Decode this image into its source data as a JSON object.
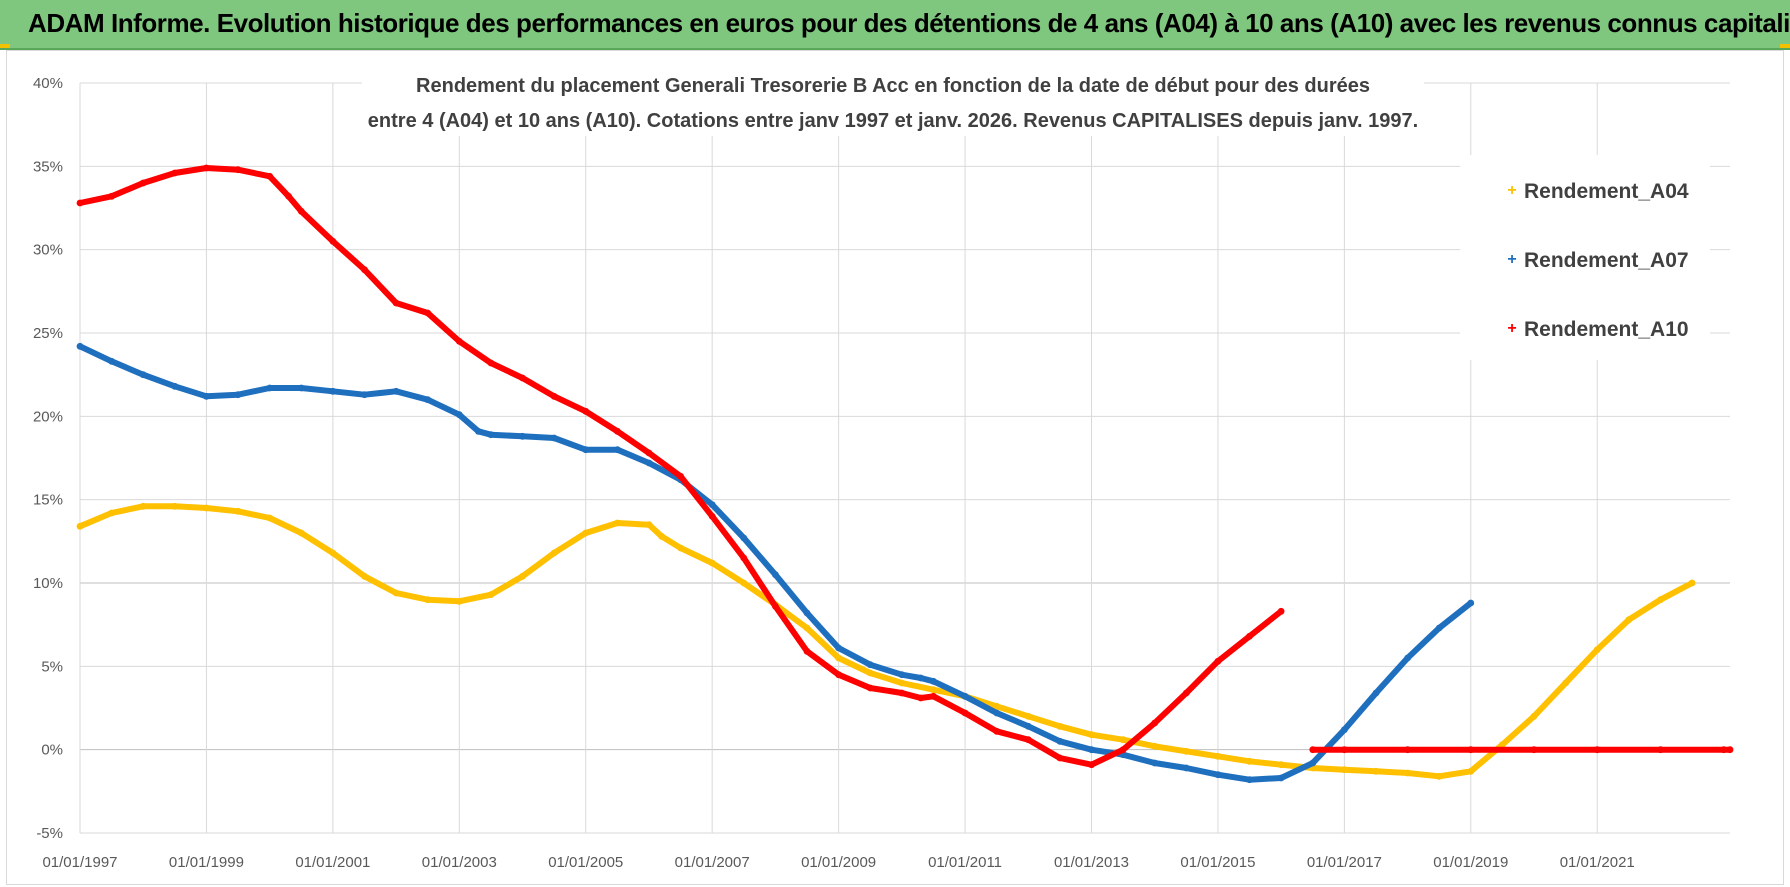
{
  "header": {
    "title": "ADAM Informe. Evolution historique des performances en euros pour des détentions de 4 ans (A04) à 10 ans (A10) avec les revenus connus capitalisés"
  },
  "colors": {
    "A04": "#ffc000",
    "A07": "#1f6fbf",
    "A10": "#ff0000",
    "header_bg": "#7fc77f",
    "grid": "#d9d9d9"
  },
  "chart_data": {
    "type": "scatter",
    "title_lines": [
      "Rendement du placement Generali Tresorerie B Acc en fonction de la date de début pour des durées",
      "entre 4 (A04) et 10 ans (A10). Cotations entre janv 1997 et janv. 2026. Revenus CAPITALISES depuis janv. 1997."
    ],
    "xlabel": "",
    "ylabel": "",
    "xlim": [
      1997.0,
      2023.1
    ],
    "ylim": [
      -5,
      40
    ],
    "yticks": [
      40,
      35,
      30,
      25,
      20,
      15,
      10,
      5,
      0,
      -5
    ],
    "ytick_labels": [
      "40%",
      "35%",
      "30%",
      "25%",
      "20%",
      "15%",
      "10%",
      "5%",
      "0%",
      "-5%"
    ],
    "xticks": [
      1997,
      1999,
      2001,
      2003,
      2005,
      2007,
      2009,
      2011,
      2013,
      2015,
      2017,
      2019,
      2021
    ],
    "xtick_labels": [
      "01/01/1997",
      "01/01/1999",
      "01/01/2001",
      "01/01/2003",
      "01/01/2005",
      "01/01/2007",
      "01/01/2009",
      "01/01/2011",
      "01/01/2013",
      "01/01/2015",
      "01/01/2017",
      "01/01/2019",
      "01/01/2021"
    ],
    "grid": true,
    "legend_position": "top-right",
    "series": [
      {
        "name": "Rendement_A04",
        "key": "A04",
        "x": [
          1997.0,
          1997.5,
          1998.0,
          1998.5,
          1999.0,
          1999.5,
          2000.0,
          2000.5,
          2001.0,
          2001.5,
          2002.0,
          2002.5,
          2003.0,
          2003.5,
          2004.0,
          2004.5,
          2005.0,
          2005.5,
          2006.0,
          2006.2,
          2006.5,
          2007.0,
          2007.5,
          2008.0,
          2008.5,
          2009.0,
          2009.5,
          2010.0,
          2010.5,
          2011.0,
          2011.5,
          2012.0,
          2012.5,
          2013.0,
          2013.5,
          2014.0,
          2014.5,
          2015.0,
          2015.5,
          2016.0,
          2016.5,
          2017.0,
          2017.5,
          2018.0,
          2018.5,
          2019.0,
          2019.5,
          2020.0,
          2020.5,
          2021.0,
          2021.5,
          2022.0,
          2022.5
        ],
        "y": [
          13.4,
          14.2,
          14.6,
          14.6,
          14.5,
          14.3,
          13.9,
          13.0,
          11.8,
          10.4,
          9.4,
          9.0,
          8.9,
          9.3,
          10.4,
          11.8,
          13.0,
          13.6,
          13.5,
          12.8,
          12.1,
          11.2,
          10.0,
          8.7,
          7.3,
          5.5,
          4.6,
          4.0,
          3.6,
          3.2,
          2.6,
          2.0,
          1.4,
          0.9,
          0.6,
          0.2,
          -0.1,
          -0.4,
          -0.7,
          -0.9,
          -1.1,
          -1.2,
          -1.3,
          -1.4,
          -1.6,
          -1.3,
          0.3,
          2.0,
          4.0,
          6.0,
          7.8,
          9.0,
          10.0
        ]
      },
      {
        "name": "Rendement_A07",
        "key": "A07",
        "x": [
          1997.0,
          1997.5,
          1998.0,
          1998.5,
          1999.0,
          1999.5,
          2000.0,
          2000.5,
          2001.0,
          2001.5,
          2002.0,
          2002.5,
          2003.0,
          2003.3,
          2003.5,
          2004.0,
          2004.5,
          2005.0,
          2005.5,
          2006.0,
          2006.5,
          2007.0,
          2007.5,
          2008.0,
          2008.5,
          2009.0,
          2009.5,
          2010.0,
          2010.3,
          2010.5,
          2011.0,
          2011.5,
          2012.0,
          2012.5,
          2013.0,
          2013.5,
          2014.0,
          2014.5,
          2015.0,
          2015.5,
          2016.0,
          2016.5,
          2017.0,
          2017.5,
          2018.0,
          2018.5,
          2019.0
        ],
        "y": [
          24.2,
          23.3,
          22.5,
          21.8,
          21.2,
          21.3,
          21.7,
          21.7,
          21.5,
          21.3,
          21.5,
          21.0,
          20.1,
          19.1,
          18.9,
          18.8,
          18.7,
          18.0,
          18.0,
          17.2,
          16.2,
          14.7,
          12.7,
          10.5,
          8.2,
          6.1,
          5.1,
          4.5,
          4.3,
          4.1,
          3.2,
          2.2,
          1.4,
          0.5,
          0.0,
          -0.3,
          -0.8,
          -1.1,
          -1.5,
          -1.8,
          -1.7,
          -0.8,
          1.2,
          3.4,
          5.5,
          7.3,
          8.8
        ]
      },
      {
        "name": "Rendement_A10",
        "key": "A10",
        "x": [
          1997.0,
          1997.5,
          1998.0,
          1998.5,
          1999.0,
          1999.5,
          2000.0,
          2000.3,
          2000.5,
          2001.0,
          2001.5,
          2002.0,
          2002.5,
          2003.0,
          2003.5,
          2004.0,
          2004.5,
          2005.0,
          2005.5,
          2006.0,
          2006.5,
          2007.0,
          2007.5,
          2008.0,
          2008.5,
          2009.0,
          2009.5,
          2010.0,
          2010.3,
          2010.5,
          2011.0,
          2011.5,
          2012.0,
          2012.5,
          2013.0,
          2013.5,
          2014.0,
          2014.5,
          2015.0,
          2015.5,
          2016.0,
          2016.5,
          2017.0,
          2018.0,
          2019.0,
          2020.0,
          2021.0,
          2022.0,
          2023.0,
          2023.1
        ],
        "y": [
          32.8,
          33.2,
          34.0,
          34.6,
          34.9,
          34.8,
          34.4,
          33.2,
          32.3,
          30.5,
          28.8,
          26.8,
          26.2,
          24.5,
          23.2,
          22.3,
          21.2,
          20.3,
          19.1,
          17.8,
          16.4,
          14.0,
          11.5,
          8.6,
          5.9,
          4.5,
          3.7,
          3.4,
          3.1,
          3.2,
          2.2,
          1.1,
          0.6,
          -0.5,
          -0.9,
          0.0,
          1.6,
          3.4,
          5.3,
          6.8,
          8.3,
          0.0,
          0.0,
          0.0,
          0.0,
          0.0,
          0.0,
          0.0,
          0.0,
          0.0
        ],
        "segments": [
          [
            0,
            40
          ],
          [
            41,
            49
          ]
        ]
      }
    ]
  }
}
